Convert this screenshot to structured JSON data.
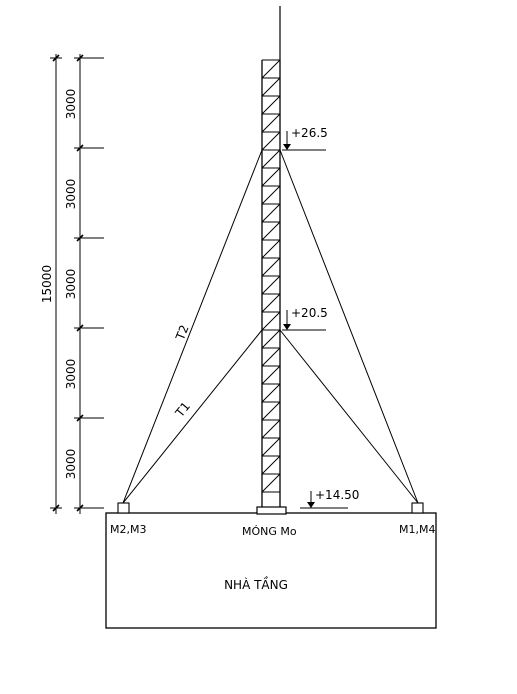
{
  "dimensions": {
    "total": "15000",
    "segments": [
      "3000",
      "3000",
      "3000",
      "3000",
      "3000"
    ]
  },
  "elevations": {
    "top": "+26.5",
    "middle": "+20.5",
    "roof": "+14.50"
  },
  "cables": {
    "upper": "T2",
    "lower": "T1"
  },
  "anchors": {
    "left": "M2,M3",
    "right": "M1,M4",
    "center": "MÓNG Mo"
  },
  "building": {
    "label": "NHÀ TẦNG"
  }
}
